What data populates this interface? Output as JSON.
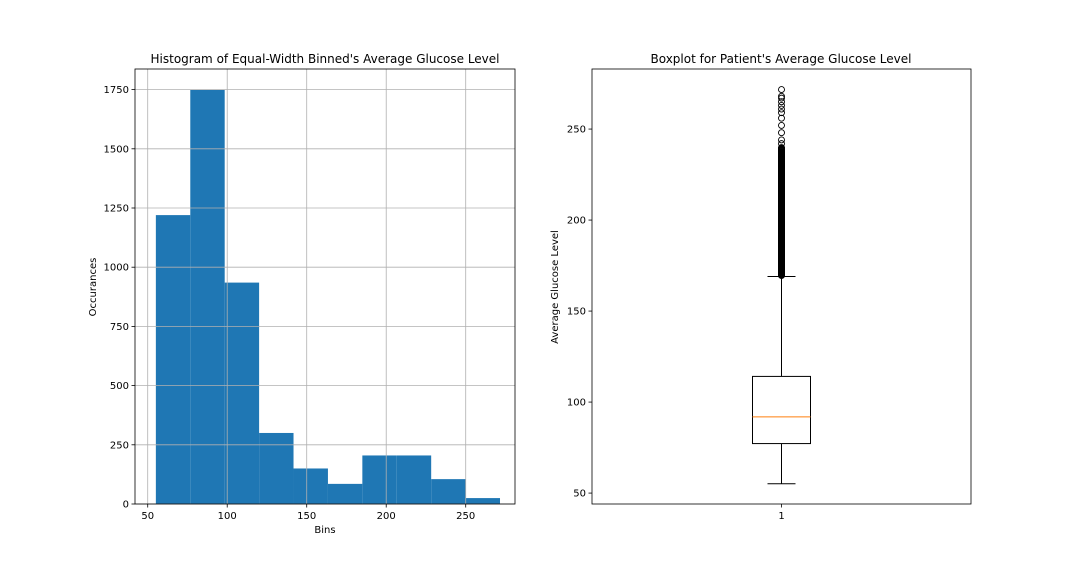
{
  "chart_data": [
    {
      "type": "bar",
      "subtype": "histogram",
      "title": "Histogram of Equal-Width Binned's Average Glucose Level",
      "xlabel": "Bins",
      "ylabel": "Occurances",
      "bin_edges": [
        55.12,
        76.77,
        98.41,
        120.06,
        141.7,
        163.35,
        184.99,
        206.64,
        228.28,
        249.93,
        271.57
      ],
      "values": [
        1220,
        1750,
        935,
        300,
        150,
        85,
        205,
        205,
        105,
        25
      ],
      "xlim": [
        42,
        281
      ],
      "ylim": [
        0,
        1837
      ],
      "xticks": [
        50,
        100,
        150,
        200,
        250
      ],
      "xtick_labels": [
        "50",
        "100",
        "150",
        "200",
        "250"
      ],
      "yticks": [
        0,
        250,
        500,
        750,
        1000,
        1250,
        1500,
        1750
      ],
      "ytick_labels": [
        "0",
        "250",
        "500",
        "750",
        "1000",
        "1250",
        "1500",
        "1750"
      ],
      "grid": true,
      "bar_color": "#1f77b4"
    },
    {
      "type": "boxplot",
      "title": "Boxplot for Patient's Average Glucose Level",
      "ylabel": "Average Glucose Level",
      "xtick_labels": [
        "1"
      ],
      "box": {
        "whisker_low": 55.12,
        "q1": 77.2,
        "median": 91.9,
        "q3": 114.1,
        "whisker_high": 169.0
      },
      "outlier_range": [
        169.5,
        271.7
      ],
      "outliers_sample": [
        170,
        172,
        175,
        178,
        182,
        186,
        190,
        194,
        198,
        202,
        206,
        210,
        214,
        218,
        222,
        226,
        230,
        234,
        238,
        242,
        244,
        248,
        252,
        256,
        259,
        261,
        263,
        265,
        267,
        268,
        271.7
      ],
      "ylim": [
        44,
        283
      ],
      "yticks": [
        50,
        100,
        150,
        200,
        250
      ],
      "ytick_labels": [
        "50",
        "100",
        "150",
        "200",
        "250"
      ],
      "grid": false,
      "median_color": "#ff7f0e"
    }
  ]
}
